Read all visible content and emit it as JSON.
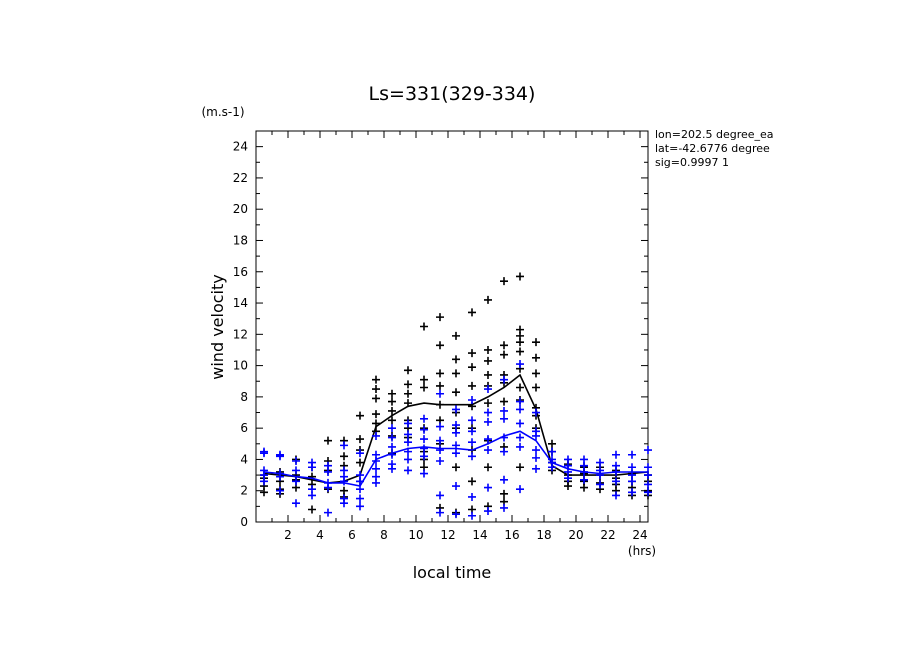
{
  "chart_data": {
    "type": "scatter",
    "title": "Ls=331(329-334)",
    "xlabel": "local time",
    "xunit": "(hrs)",
    "ylabel": "wind velocity",
    "yunit": "(m.s-1)",
    "xlim": [
      0,
      24.5
    ],
    "ylim": [
      0,
      25
    ],
    "xticks": [
      2,
      4,
      6,
      8,
      10,
      12,
      14,
      16,
      18,
      20,
      22,
      24
    ],
    "yticks": [
      0,
      2,
      4,
      6,
      8,
      10,
      12,
      14,
      16,
      18,
      20,
      22,
      24
    ],
    "info": [
      "lon=202.5 degree_ea",
      "lat=-42.6776 degree",
      "sig=0.9997 1"
    ],
    "grid": false,
    "series": [
      {
        "color": "#000000",
        "mean_x": [
          0.5,
          1.5,
          2.5,
          3.5,
          4.5,
          5.5,
          6.5,
          7.5,
          8.5,
          9.5,
          10.5,
          11.5,
          12.5,
          13.5,
          14.5,
          15.5,
          16.5,
          17.5,
          18.5,
          19.5,
          20.5,
          21.5,
          22.5,
          23.5,
          24.5
        ],
        "mean_y": [
          3.1,
          3.0,
          2.9,
          2.7,
          2.5,
          2.6,
          3.0,
          6.1,
          6.8,
          7.4,
          7.6,
          7.5,
          7.5,
          7.5,
          8.0,
          8.6,
          9.4,
          7.2,
          3.6,
          3.0,
          3.0,
          3.0,
          3.0,
          3.1,
          3.2
        ],
        "points": [
          [
            0.5,
            3.0
          ],
          [
            0.5,
            2.8
          ],
          [
            0.5,
            2.3
          ],
          [
            0.5,
            1.9
          ],
          [
            1.5,
            3.2
          ],
          [
            1.5,
            2.6
          ],
          [
            1.5,
            2.1
          ],
          [
            1.5,
            1.8
          ],
          [
            2.5,
            3.0
          ],
          [
            2.5,
            2.7
          ],
          [
            2.5,
            2.2
          ],
          [
            2.5,
            4.0
          ],
          [
            3.5,
            3.5
          ],
          [
            3.5,
            2.9
          ],
          [
            3.5,
            2.4
          ],
          [
            3.5,
            0.8
          ],
          [
            4.5,
            5.2
          ],
          [
            4.5,
            3.9
          ],
          [
            4.5,
            3.3
          ],
          [
            4.5,
            2.1
          ],
          [
            5.5,
            5.2
          ],
          [
            5.5,
            4.2
          ],
          [
            5.5,
            3.6
          ],
          [
            5.5,
            2.0
          ],
          [
            5.5,
            1.6
          ],
          [
            6.5,
            6.8
          ],
          [
            6.5,
            5.3
          ],
          [
            6.5,
            4.6
          ],
          [
            6.5,
            3.8
          ],
          [
            6.5,
            2.6
          ],
          [
            7.5,
            9.1
          ],
          [
            7.5,
            8.5
          ],
          [
            7.5,
            7.9
          ],
          [
            7.5,
            6.9
          ],
          [
            7.5,
            6.3
          ],
          [
            7.5,
            5.8
          ],
          [
            8.5,
            8.2
          ],
          [
            8.5,
            7.7
          ],
          [
            8.5,
            7.1
          ],
          [
            8.5,
            6.5
          ],
          [
            8.5,
            5.5
          ],
          [
            8.5,
            4.4
          ],
          [
            9.5,
            9.7
          ],
          [
            9.5,
            8.8
          ],
          [
            9.5,
            8.2
          ],
          [
            9.5,
            7.6
          ],
          [
            9.5,
            6.5
          ],
          [
            9.5,
            6.0
          ],
          [
            9.5,
            5.4
          ],
          [
            10.5,
            12.5
          ],
          [
            10.5,
            9.1
          ],
          [
            10.5,
            8.6
          ],
          [
            10.5,
            6.0
          ],
          [
            10.5,
            4.5
          ],
          [
            10.5,
            4.0
          ],
          [
            10.5,
            3.5
          ],
          [
            11.5,
            13.1
          ],
          [
            11.5,
            11.3
          ],
          [
            11.5,
            9.5
          ],
          [
            11.5,
            8.7
          ],
          [
            11.5,
            7.5
          ],
          [
            11.5,
            6.5
          ],
          [
            11.5,
            5.0
          ],
          [
            11.5,
            0.9
          ],
          [
            12.5,
            11.9
          ],
          [
            12.5,
            10.4
          ],
          [
            12.5,
            9.5
          ],
          [
            12.5,
            8.3
          ],
          [
            12.5,
            7.0
          ],
          [
            12.5,
            6.0
          ],
          [
            12.5,
            3.5
          ],
          [
            12.5,
            0.6
          ],
          [
            13.5,
            13.4
          ],
          [
            13.5,
            10.8
          ],
          [
            13.5,
            9.9
          ],
          [
            13.5,
            8.7
          ],
          [
            13.5,
            7.4
          ],
          [
            13.5,
            6.0
          ],
          [
            13.5,
            4.6
          ],
          [
            13.5,
            2.6
          ],
          [
            13.5,
            0.8
          ],
          [
            14.5,
            14.2
          ],
          [
            14.5,
            11.0
          ],
          [
            14.5,
            10.3
          ],
          [
            14.5,
            9.4
          ],
          [
            14.5,
            8.7
          ],
          [
            14.5,
            7.6
          ],
          [
            14.5,
            5.2
          ],
          [
            14.5,
            3.5
          ],
          [
            14.5,
            1.0
          ],
          [
            15.5,
            15.4
          ],
          [
            15.5,
            11.3
          ],
          [
            15.5,
            10.7
          ],
          [
            15.5,
            9.4
          ],
          [
            15.5,
            8.9
          ],
          [
            15.5,
            7.7
          ],
          [
            15.5,
            4.8
          ],
          [
            15.5,
            1.8
          ],
          [
            15.5,
            1.3
          ],
          [
            16.5,
            15.7
          ],
          [
            16.5,
            12.3
          ],
          [
            16.5,
            11.9
          ],
          [
            16.5,
            11.5
          ],
          [
            16.5,
            10.9
          ],
          [
            16.5,
            9.8
          ],
          [
            16.5,
            8.6
          ],
          [
            16.5,
            7.8
          ],
          [
            16.5,
            3.5
          ],
          [
            17.5,
            11.5
          ],
          [
            17.5,
            10.5
          ],
          [
            17.5,
            9.5
          ],
          [
            17.5,
            8.6
          ],
          [
            17.5,
            7.3
          ],
          [
            17.5,
            6.8
          ],
          [
            17.5,
            6.0
          ],
          [
            18.5,
            5.0
          ],
          [
            18.5,
            4.5
          ],
          [
            18.5,
            3.8
          ],
          [
            18.5,
            3.3
          ],
          [
            19.5,
            3.7
          ],
          [
            19.5,
            3.0
          ],
          [
            19.5,
            2.6
          ],
          [
            19.5,
            2.3
          ],
          [
            20.5,
            3.5
          ],
          [
            20.5,
            3.1
          ],
          [
            20.5,
            2.6
          ],
          [
            20.5,
            2.2
          ],
          [
            21.5,
            3.5
          ],
          [
            21.5,
            3.0
          ],
          [
            21.5,
            2.5
          ],
          [
            21.5,
            2.1
          ],
          [
            22.5,
            3.3
          ],
          [
            22.5,
            2.8
          ],
          [
            22.5,
            2.4
          ],
          [
            22.5,
            2.0
          ],
          [
            23.5,
            3.1
          ],
          [
            23.5,
            2.6
          ],
          [
            23.5,
            2.2
          ],
          [
            23.5,
            1.7
          ],
          [
            24.5,
            3.0
          ],
          [
            24.5,
            2.6
          ],
          [
            24.5,
            2.0
          ],
          [
            24.5,
            1.7
          ]
        ]
      },
      {
        "color": "#0000ff",
        "mean_x": [
          0.5,
          1.5,
          2.5,
          3.5,
          4.5,
          5.5,
          6.5,
          7.5,
          8.5,
          9.5,
          10.5,
          11.5,
          12.5,
          13.5,
          14.5,
          15.5,
          16.5,
          17.5,
          18.5,
          19.5,
          20.5,
          21.5,
          22.5,
          23.5,
          24.5
        ],
        "mean_y": [
          3.2,
          3.1,
          2.9,
          2.8,
          2.5,
          2.5,
          2.3,
          4.0,
          4.4,
          4.7,
          4.8,
          4.7,
          4.7,
          4.6,
          5.0,
          5.5,
          5.8,
          5.2,
          3.8,
          3.4,
          3.2,
          3.1,
          3.2,
          3.2,
          3.2
        ],
        "points": [
          [
            0.5,
            4.5
          ],
          [
            0.5,
            4.4
          ],
          [
            0.5,
            3.3
          ],
          [
            0.5,
            3.0
          ],
          [
            0.5,
            2.6
          ],
          [
            1.5,
            4.3
          ],
          [
            1.5,
            4.2
          ],
          [
            1.5,
            3.1
          ],
          [
            1.5,
            2.9
          ],
          [
            1.5,
            2.0
          ],
          [
            2.5,
            3.9
          ],
          [
            2.5,
            3.3
          ],
          [
            2.5,
            2.6
          ],
          [
            2.5,
            1.2
          ],
          [
            3.5,
            3.8
          ],
          [
            3.5,
            3.5
          ],
          [
            3.5,
            2.1
          ],
          [
            3.5,
            1.7
          ],
          [
            4.5,
            3.6
          ],
          [
            4.5,
            3.2
          ],
          [
            4.5,
            2.5
          ],
          [
            4.5,
            2.2
          ],
          [
            4.5,
            0.6
          ],
          [
            5.5,
            4.9
          ],
          [
            5.5,
            3.3
          ],
          [
            5.5,
            2.9
          ],
          [
            5.5,
            2.6
          ],
          [
            5.5,
            1.5
          ],
          [
            5.5,
            1.2
          ],
          [
            6.5,
            4.4
          ],
          [
            6.5,
            3.0
          ],
          [
            6.5,
            2.6
          ],
          [
            6.5,
            2.1
          ],
          [
            6.5,
            1.5
          ],
          [
            6.5,
            1.0
          ],
          [
            7.5,
            5.5
          ],
          [
            7.5,
            4.3
          ],
          [
            7.5,
            3.9
          ],
          [
            7.5,
            3.4
          ],
          [
            7.5,
            2.9
          ],
          [
            7.5,
            2.5
          ],
          [
            8.5,
            6.0
          ],
          [
            8.5,
            5.4
          ],
          [
            8.5,
            4.8
          ],
          [
            8.5,
            4.3
          ],
          [
            8.5,
            3.7
          ],
          [
            8.5,
            3.4
          ],
          [
            9.5,
            6.3
          ],
          [
            9.5,
            5.6
          ],
          [
            9.5,
            5.1
          ],
          [
            9.5,
            4.5
          ],
          [
            9.5,
            4.0
          ],
          [
            9.5,
            3.3
          ],
          [
            10.5,
            6.6
          ],
          [
            10.5,
            5.9
          ],
          [
            10.5,
            5.3
          ],
          [
            10.5,
            4.7
          ],
          [
            10.5,
            4.2
          ],
          [
            10.5,
            3.1
          ],
          [
            11.5,
            8.2
          ],
          [
            11.5,
            6.1
          ],
          [
            11.5,
            5.2
          ],
          [
            11.5,
            4.6
          ],
          [
            11.5,
            3.9
          ],
          [
            11.5,
            1.7
          ],
          [
            11.5,
            0.6
          ],
          [
            12.5,
            7.2
          ],
          [
            12.5,
            6.2
          ],
          [
            12.5,
            5.7
          ],
          [
            12.5,
            4.9
          ],
          [
            12.5,
            4.4
          ],
          [
            12.5,
            2.3
          ],
          [
            12.5,
            0.5
          ],
          [
            13.5,
            7.8
          ],
          [
            13.5,
            6.5
          ],
          [
            13.5,
            5.8
          ],
          [
            13.5,
            5.1
          ],
          [
            13.5,
            4.2
          ],
          [
            13.5,
            1.6
          ],
          [
            13.5,
            0.4
          ],
          [
            14.5,
            8.5
          ],
          [
            14.5,
            7.0
          ],
          [
            14.5,
            6.4
          ],
          [
            14.5,
            5.3
          ],
          [
            14.5,
            4.6
          ],
          [
            14.5,
            2.2
          ],
          [
            14.5,
            0.7
          ],
          [
            15.5,
            9.1
          ],
          [
            15.5,
            7.1
          ],
          [
            15.5,
            6.6
          ],
          [
            15.5,
            5.4
          ],
          [
            15.5,
            4.5
          ],
          [
            15.5,
            2.7
          ],
          [
            15.5,
            0.9
          ],
          [
            16.5,
            10.1
          ],
          [
            16.5,
            7.7
          ],
          [
            16.5,
            7.2
          ],
          [
            16.5,
            6.3
          ],
          [
            16.5,
            5.4
          ],
          [
            16.5,
            4.8
          ],
          [
            16.5,
            2.1
          ],
          [
            17.5,
            7.0
          ],
          [
            17.5,
            5.8
          ],
          [
            17.5,
            5.5
          ],
          [
            17.5,
            4.6
          ],
          [
            17.5,
            4.1
          ],
          [
            17.5,
            3.4
          ],
          [
            18.5,
            4.5
          ],
          [
            18.5,
            4.0
          ],
          [
            18.5,
            3.8
          ],
          [
            18.5,
            3.5
          ],
          [
            19.5,
            4.0
          ],
          [
            19.5,
            3.6
          ],
          [
            19.5,
            3.2
          ],
          [
            19.5,
            2.8
          ],
          [
            20.5,
            4.0
          ],
          [
            20.5,
            3.6
          ],
          [
            20.5,
            3.2
          ],
          [
            20.5,
            2.7
          ],
          [
            21.5,
            3.8
          ],
          [
            21.5,
            3.3
          ],
          [
            21.5,
            3.0
          ],
          [
            21.5,
            2.4
          ],
          [
            22.5,
            4.3
          ],
          [
            22.5,
            3.6
          ],
          [
            22.5,
            3.2
          ],
          [
            22.5,
            2.6
          ],
          [
            22.5,
            1.7
          ],
          [
            23.5,
            4.3
          ],
          [
            23.5,
            3.5
          ],
          [
            23.5,
            3.0
          ],
          [
            23.5,
            2.6
          ],
          [
            23.5,
            1.9
          ],
          [
            24.5,
            4.6
          ],
          [
            24.5,
            3.5
          ],
          [
            24.5,
            3.0
          ],
          [
            24.5,
            2.4
          ],
          [
            24.5,
            1.9
          ]
        ]
      }
    ]
  }
}
